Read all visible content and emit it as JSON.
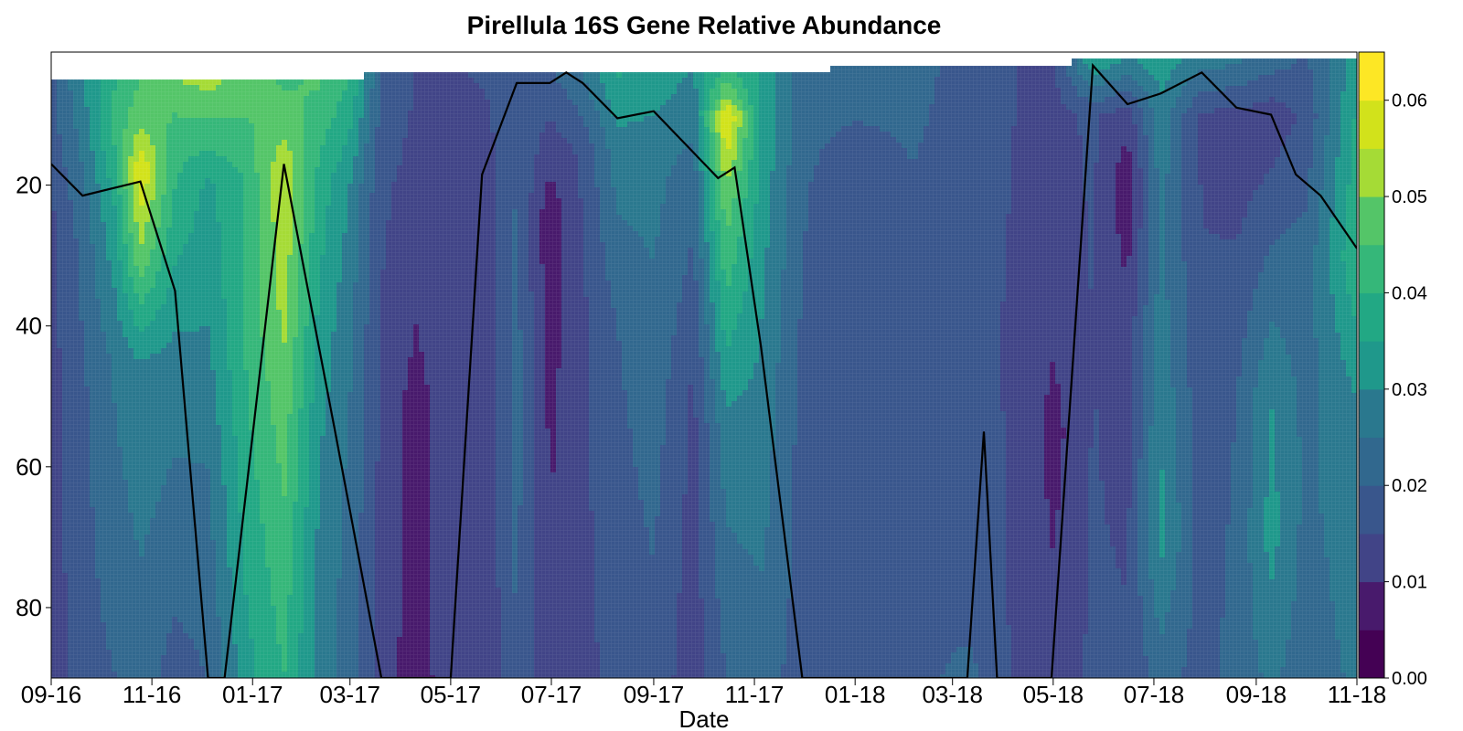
{
  "chart_data": {
    "type": "heatmap",
    "subtype": "filled-contour",
    "title": "Pirellula 16S Gene Relative Abundance",
    "xlabel": "Date",
    "ylabel": "",
    "x_tick_labels": [
      "09-16",
      "11-16",
      "01-17",
      "03-17",
      "05-17",
      "07-17",
      "09-17",
      "11-17",
      "01-18",
      "03-18",
      "05-18",
      "07-18",
      "09-18",
      "11-18"
    ],
    "x_tick_dates": [
      "2016-09-01",
      "2016-11-01",
      "2017-01-01",
      "2017-03-01",
      "2017-05-01",
      "2017-07-01",
      "2017-09-01",
      "2017-11-01",
      "2018-01-01",
      "2018-03-01",
      "2018-05-01",
      "2018-07-01",
      "2018-09-01",
      "2018-11-01"
    ],
    "xlim": [
      "2016-09-01",
      "2018-11-01"
    ],
    "y_tick_labels": [
      "20",
      "40",
      "60",
      "80"
    ],
    "y_ticks": [
      20,
      40,
      60,
      80
    ],
    "ylim": [
      90,
      5
    ],
    "y_reversed": true,
    "colorbar": {
      "palette": "viridis",
      "tick_labels": [
        "0.00",
        "0.01",
        "0.02",
        "0.03",
        "0.04",
        "0.05",
        "0.06"
      ],
      "ticks": [
        0,
        0.01,
        0.02,
        0.03,
        0.04,
        0.05,
        0.06
      ],
      "range": [
        0,
        0.065
      ],
      "levels": 13,
      "colors": [
        "#440154",
        "#481a6c",
        "#472f7d",
        "#414487",
        "#39568c",
        "#31688e",
        "#2a788e",
        "#23888e",
        "#1f988b",
        "#22a884",
        "#35b779",
        "#54c568",
        "#7ad151",
        "#a5db36",
        "#d2e21b",
        "#fde725"
      ]
    },
    "columns": [
      {
        "date": "2016-09-01",
        "top": 5,
        "prof": [
          [
            5,
            0.018
          ],
          [
            12,
            0.018
          ],
          [
            25,
            0.014
          ],
          [
            50,
            0.013
          ],
          [
            90,
            0.012
          ]
        ]
      },
      {
        "date": "2016-09-20",
        "top": 5,
        "prof": [
          [
            5,
            0.03
          ],
          [
            12,
            0.027
          ],
          [
            25,
            0.022
          ],
          [
            50,
            0.019
          ],
          [
            90,
            0.018
          ]
        ]
      },
      {
        "date": "2016-10-10",
        "top": 5,
        "prof": [
          [
            5,
            0.04
          ],
          [
            12,
            0.042
          ],
          [
            22,
            0.036
          ],
          [
            45,
            0.026
          ],
          [
            90,
            0.02
          ]
        ]
      },
      {
        "date": "2016-10-25",
        "top": 5,
        "prof": [
          [
            5,
            0.045
          ],
          [
            12,
            0.05
          ],
          [
            18,
            0.06
          ],
          [
            30,
            0.049
          ],
          [
            45,
            0.03
          ],
          [
            90,
            0.022
          ]
        ]
      },
      {
        "date": "2016-11-15",
        "top": 5,
        "prof": [
          [
            5,
            0.05
          ],
          [
            12,
            0.043
          ],
          [
            25,
            0.038
          ],
          [
            45,
            0.028
          ],
          [
            90,
            0.018
          ]
        ]
      },
      {
        "date": "2016-12-05",
        "top": 5,
        "prof": [
          [
            5,
            0.052
          ],
          [
            20,
            0.034
          ],
          [
            40,
            0.03
          ],
          [
            60,
            0.025
          ],
          [
            90,
            0.02
          ]
        ]
      },
      {
        "date": "2016-12-28",
        "top": 5,
        "prof": [
          [
            5,
            0.048
          ],
          [
            20,
            0.04
          ],
          [
            40,
            0.041
          ],
          [
            60,
            0.038
          ],
          [
            90,
            0.033
          ]
        ]
      },
      {
        "date": "2017-01-20",
        "top": 5,
        "prof": [
          [
            5,
            0.044
          ],
          [
            12,
            0.048
          ],
          [
            18,
            0.055
          ],
          [
            35,
            0.052
          ],
          [
            60,
            0.046
          ],
          [
            90,
            0.04
          ]
        ]
      },
      {
        "date": "2017-02-10",
        "top": 5,
        "prof": [
          [
            5,
            0.046
          ],
          [
            20,
            0.038
          ],
          [
            40,
            0.034
          ],
          [
            60,
            0.03
          ],
          [
            90,
            0.028
          ]
        ]
      },
      {
        "date": "2017-03-01",
        "top": 5,
        "prof": [
          [
            5,
            0.04
          ],
          [
            20,
            0.03
          ],
          [
            40,
            0.026
          ],
          [
            60,
            0.024
          ],
          [
            90,
            0.022
          ]
        ]
      },
      {
        "date": "2017-03-20",
        "top": 3,
        "prof": [
          [
            3,
            0.02
          ],
          [
            20,
            0.016
          ],
          [
            50,
            0.014
          ],
          [
            90,
            0.013
          ]
        ]
      },
      {
        "date": "2017-04-10",
        "top": 3,
        "prof": [
          [
            3,
            0.015
          ],
          [
            30,
            0.012
          ],
          [
            50,
            0.008
          ],
          [
            90,
            0.007
          ]
        ]
      },
      {
        "date": "2017-04-30",
        "top": 3,
        "prof": [
          [
            3,
            0.014
          ],
          [
            30,
            0.014
          ],
          [
            60,
            0.013
          ],
          [
            90,
            0.013
          ]
        ]
      },
      {
        "date": "2017-05-20",
        "top": 3,
        "prof": [
          [
            3,
            0.016
          ],
          [
            15,
            0.012
          ],
          [
            50,
            0.01
          ],
          [
            90,
            0.01
          ]
        ]
      },
      {
        "date": "2017-06-10",
        "top": 3,
        "prof": [
          [
            3,
            0.018
          ],
          [
            15,
            0.02
          ],
          [
            50,
            0.022
          ],
          [
            90,
            0.02
          ]
        ]
      },
      {
        "date": "2017-06-30",
        "top": 3,
        "prof": [
          [
            3,
            0.02
          ],
          [
            15,
            0.012
          ],
          [
            25,
            0.006
          ],
          [
            50,
            0.009
          ],
          [
            90,
            0.011
          ]
        ]
      },
      {
        "date": "2017-07-20",
        "top": 3,
        "prof": [
          [
            3,
            0.026
          ],
          [
            15,
            0.016
          ],
          [
            40,
            0.014
          ],
          [
            90,
            0.014
          ]
        ]
      },
      {
        "date": "2017-08-10",
        "top": 3,
        "prof": [
          [
            3,
            0.036
          ],
          [
            15,
            0.028
          ],
          [
            40,
            0.02
          ],
          [
            90,
            0.016
          ]
        ]
      },
      {
        "date": "2017-09-01",
        "top": 3,
        "prof": [
          [
            3,
            0.034
          ],
          [
            15,
            0.027
          ],
          [
            40,
            0.024
          ],
          [
            90,
            0.018
          ]
        ]
      },
      {
        "date": "2017-09-25",
        "top": 3,
        "prof": [
          [
            3,
            0.03
          ],
          [
            20,
            0.022
          ],
          [
            50,
            0.014
          ],
          [
            90,
            0.012
          ]
        ]
      },
      {
        "date": "2017-10-15",
        "top": 3,
        "prof": [
          [
            3,
            0.04
          ],
          [
            8,
            0.052
          ],
          [
            10,
            0.062
          ],
          [
            20,
            0.05
          ],
          [
            35,
            0.04
          ],
          [
            55,
            0.028
          ],
          [
            90,
            0.02
          ]
        ]
      },
      {
        "date": "2017-11-05",
        "top": 3,
        "prof": [
          [
            3,
            0.034
          ],
          [
            15,
            0.034
          ],
          [
            40,
            0.03
          ],
          [
            70,
            0.026
          ],
          [
            90,
            0.022
          ]
        ]
      },
      {
        "date": "2017-11-30",
        "top": 3,
        "prof": [
          [
            3,
            0.022
          ],
          [
            30,
            0.02
          ],
          [
            60,
            0.018
          ],
          [
            90,
            0.018
          ]
        ]
      },
      {
        "date": "2018-01-01",
        "top": 2,
        "prof": [
          [
            2,
            0.024
          ],
          [
            20,
            0.016
          ],
          [
            50,
            0.017
          ],
          [
            90,
            0.017
          ]
        ]
      },
      {
        "date": "2018-02-05",
        "top": 2,
        "prof": [
          [
            2,
            0.022
          ],
          [
            40,
            0.017
          ],
          [
            90,
            0.018
          ]
        ]
      },
      {
        "date": "2018-03-10",
        "top": 2,
        "prof": [
          [
            2,
            0.018
          ],
          [
            40,
            0.017
          ],
          [
            80,
            0.018
          ],
          [
            90,
            0.022
          ]
        ]
      },
      {
        "date": "2018-04-10",
        "top": 2,
        "prof": [
          [
            2,
            0.015
          ],
          [
            40,
            0.014
          ],
          [
            90,
            0.014
          ]
        ]
      },
      {
        "date": "2018-05-01",
        "top": 2,
        "prof": [
          [
            2,
            0.014
          ],
          [
            40,
            0.011
          ],
          [
            55,
            0.008
          ],
          [
            90,
            0.012
          ]
        ]
      },
      {
        "date": "2018-05-25",
        "top": 1,
        "prof": [
          [
            1,
            0.038
          ],
          [
            10,
            0.016
          ],
          [
            40,
            0.015
          ],
          [
            90,
            0.016
          ]
        ]
      },
      {
        "date": "2018-06-15",
        "top": 1,
        "prof": [
          [
            1,
            0.032
          ],
          [
            10,
            0.012
          ],
          [
            20,
            0.006
          ],
          [
            40,
            0.012
          ],
          [
            90,
            0.016
          ]
        ]
      },
      {
        "date": "2018-07-05",
        "top": 1,
        "prof": [
          [
            1,
            0.034
          ],
          [
            10,
            0.028
          ],
          [
            30,
            0.026
          ],
          [
            70,
            0.032
          ],
          [
            90,
            0.022
          ]
        ]
      },
      {
        "date": "2018-07-30",
        "top": 1,
        "prof": [
          [
            1,
            0.03
          ],
          [
            10,
            0.014
          ],
          [
            40,
            0.016
          ],
          [
            90,
            0.018
          ]
        ]
      },
      {
        "date": "2018-08-20",
        "top": 1,
        "prof": [
          [
            1,
            0.028
          ],
          [
            10,
            0.014
          ],
          [
            15,
            0.012
          ],
          [
            50,
            0.02
          ],
          [
            90,
            0.022
          ]
        ]
      },
      {
        "date": "2018-09-10",
        "top": 1,
        "prof": [
          [
            1,
            0.024
          ],
          [
            10,
            0.012
          ],
          [
            20,
            0.016
          ],
          [
            50,
            0.03
          ],
          [
            70,
            0.032
          ],
          [
            90,
            0.026
          ]
        ]
      },
      {
        "date": "2018-10-01",
        "top": 1,
        "prof": [
          [
            1,
            0.02
          ],
          [
            10,
            0.016
          ],
          [
            30,
            0.022
          ],
          [
            60,
            0.024
          ],
          [
            90,
            0.022
          ]
        ]
      },
      {
        "date": "2018-11-01",
        "top": 1,
        "prof": [
          [
            1,
            0.032
          ],
          [
            10,
            0.036
          ],
          [
            30,
            0.04
          ],
          [
            50,
            0.03
          ],
          [
            90,
            0.026
          ]
        ]
      }
    ],
    "line_series": {
      "color": "#000000",
      "points": [
        [
          "2016-09-01",
          17
        ],
        [
          "2016-09-20",
          21.5
        ],
        [
          "2016-10-25",
          19.5
        ],
        [
          "2016-11-15",
          35
        ],
        [
          "2016-12-05",
          90
        ],
        [
          "2016-12-15",
          90
        ],
        [
          "2017-01-20",
          17
        ],
        [
          "2017-02-20",
          55
        ],
        [
          "2017-03-20",
          90
        ],
        [
          "2017-05-01",
          90
        ],
        [
          "2017-05-20",
          18.5
        ],
        [
          "2017-06-10",
          5.5
        ],
        [
          "2017-06-30",
          5.5
        ],
        [
          "2017-07-10",
          4
        ],
        [
          "2017-07-20",
          5.5
        ],
        [
          "2017-08-10",
          10.5
        ],
        [
          "2017-09-01",
          9.5
        ],
        [
          "2017-10-10",
          19
        ],
        [
          "2017-10-20",
          17.5
        ],
        [
          "2017-11-05",
          43
        ],
        [
          "2017-11-30",
          90
        ],
        [
          "2018-03-10",
          90
        ],
        [
          "2018-03-20",
          55
        ],
        [
          "2018-03-28",
          90
        ],
        [
          "2018-04-30",
          90
        ],
        [
          "2018-05-25",
          3
        ],
        [
          "2018-06-15",
          8.5
        ],
        [
          "2018-07-05",
          7
        ],
        [
          "2018-07-30",
          4
        ],
        [
          "2018-08-20",
          9
        ],
        [
          "2018-09-10",
          10
        ],
        [
          "2018-09-25",
          18.5
        ],
        [
          "2018-10-10",
          21.5
        ],
        [
          "2018-11-01",
          29
        ]
      ]
    }
  }
}
